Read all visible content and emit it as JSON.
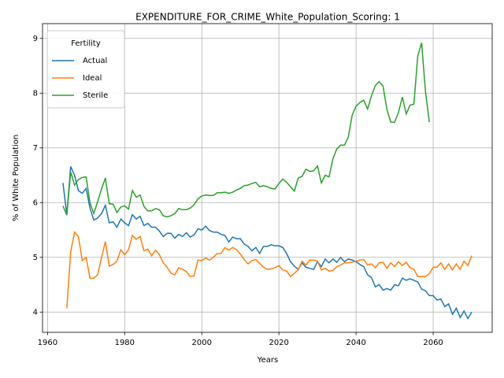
{
  "chart_data": {
    "type": "line",
    "title": "EXPENDITURE_FOR_CRIME_White_Population_Scoring: 1",
    "xlabel": "Years",
    "ylabel": "% of White Population",
    "legend_title": "Fertility",
    "legend_loc": "upper left",
    "grid": true,
    "xlim": [
      1958.7,
      2075.3
    ],
    "ylim": [
      3.63,
      9.27
    ],
    "xticks": [
      1960,
      1980,
      2000,
      2020,
      2040,
      2060
    ],
    "yticks": [
      4,
      5,
      6,
      7,
      8,
      9
    ],
    "x": [
      1964,
      1965,
      1966,
      1967,
      1968,
      1969,
      1970,
      1971,
      1972,
      1973,
      1974,
      1975,
      1976,
      1977,
      1978,
      1979,
      1980,
      1981,
      1982,
      1983,
      1984,
      1985,
      1986,
      1987,
      1988,
      1989,
      1990,
      1991,
      1992,
      1993,
      1994,
      1995,
      1996,
      1997,
      1998,
      1999,
      2000,
      2001,
      2002,
      2003,
      2004,
      2005,
      2006,
      2007,
      2008,
      2009,
      2010,
      2011,
      2012,
      2013,
      2014,
      2015,
      2016,
      2017,
      2018,
      2019,
      2020,
      2021,
      2022,
      2023,
      2024,
      2025,
      2026,
      2027,
      2028,
      2029,
      2030,
      2031,
      2032,
      2033,
      2034,
      2035,
      2036,
      2037,
      2038,
      2039,
      2040,
      2041,
      2042,
      2043,
      2044,
      2045,
      2046,
      2047,
      2048,
      2049,
      2050,
      2051,
      2052,
      2053,
      2054,
      2055,
      2056,
      2057,
      2058,
      2059,
      2060,
      2061,
      2062,
      2063,
      2064,
      2065,
      2066,
      2067,
      2068,
      2069,
      2070
    ],
    "series": [
      {
        "name": "Actual",
        "color": "#1f77b4",
        "values": [
          6.36,
          5.78,
          6.66,
          6.5,
          6.22,
          6.17,
          6.26,
          5.9,
          5.68,
          5.72,
          5.8,
          5.95,
          5.63,
          5.65,
          5.55,
          5.7,
          5.63,
          5.58,
          5.78,
          5.7,
          5.75,
          5.58,
          5.62,
          5.55,
          5.55,
          5.48,
          5.38,
          5.44,
          5.44,
          5.35,
          5.42,
          5.38,
          5.45,
          5.37,
          5.41,
          5.52,
          5.5,
          5.57,
          5.49,
          5.46,
          5.46,
          5.42,
          5.4,
          5.28,
          5.37,
          5.34,
          5.34,
          5.24,
          5.2,
          5.12,
          5.18,
          5.07,
          5.2,
          5.2,
          5.23,
          5.21,
          5.21,
          5.18,
          5.07,
          4.92,
          4.84,
          4.78,
          4.9,
          4.82,
          4.8,
          4.78,
          4.92,
          4.83,
          4.97,
          4.9,
          4.97,
          4.91,
          5.0,
          4.92,
          4.97,
          4.95,
          4.92,
          4.87,
          4.83,
          4.68,
          4.63,
          4.46,
          4.5,
          4.4,
          4.43,
          4.4,
          4.5,
          4.48,
          4.62,
          4.58,
          4.61,
          4.58,
          4.55,
          4.42,
          4.39,
          4.3,
          4.3,
          4.22,
          4.24,
          4.1,
          4.15,
          3.96,
          4.07,
          3.9,
          4.02,
          3.88,
          4.0
        ]
      },
      {
        "name": "Ideal",
        "color": "#ff7f0e",
        "values": [
          null,
          4.07,
          5.1,
          5.46,
          5.38,
          4.94,
          5.0,
          4.62,
          4.62,
          4.68,
          5.0,
          5.29,
          4.84,
          4.87,
          4.93,
          5.14,
          5.05,
          5.14,
          5.4,
          5.33,
          5.38,
          5.12,
          5.15,
          5.03,
          5.13,
          5.05,
          4.9,
          4.82,
          4.71,
          4.68,
          4.81,
          4.78,
          4.74,
          4.65,
          4.66,
          4.95,
          4.94,
          4.99,
          4.95,
          5.0,
          5.07,
          5.07,
          5.18,
          5.13,
          5.18,
          5.14,
          5.06,
          4.96,
          4.88,
          4.94,
          4.96,
          4.89,
          4.82,
          4.78,
          4.79,
          4.81,
          4.85,
          4.77,
          4.75,
          4.65,
          4.71,
          4.77,
          4.93,
          4.86,
          4.95,
          4.95,
          4.93,
          4.77,
          4.8,
          4.75,
          4.76,
          4.83,
          4.86,
          4.9,
          4.9,
          4.91,
          4.93,
          4.95,
          4.96,
          4.86,
          4.88,
          4.81,
          4.9,
          4.91,
          4.8,
          4.9,
          4.83,
          4.92,
          4.85,
          4.91,
          4.81,
          4.78,
          4.65,
          4.65,
          4.65,
          4.7,
          4.82,
          4.82,
          4.9,
          4.78,
          4.88,
          4.77,
          4.88,
          4.78,
          4.93,
          4.85,
          5.03
        ]
      },
      {
        "name": "Sterile",
        "color": "#2ca02c",
        "values": [
          5.94,
          5.77,
          6.56,
          6.32,
          6.42,
          6.46,
          6.47,
          6.0,
          5.8,
          6.02,
          6.25,
          6.45,
          5.98,
          5.97,
          5.82,
          5.92,
          5.94,
          5.88,
          6.22,
          6.1,
          6.14,
          5.93,
          5.85,
          5.85,
          5.89,
          5.87,
          5.76,
          5.74,
          5.76,
          5.8,
          5.89,
          5.87,
          5.87,
          5.9,
          5.96,
          6.07,
          6.12,
          6.14,
          6.13,
          6.13,
          6.18,
          6.18,
          6.19,
          6.17,
          6.19,
          6.23,
          6.26,
          6.31,
          6.32,
          6.35,
          6.37,
          6.29,
          6.31,
          6.29,
          6.26,
          6.25,
          6.35,
          6.43,
          6.37,
          6.29,
          6.21,
          6.45,
          6.48,
          6.61,
          6.57,
          6.58,
          6.67,
          6.36,
          6.5,
          6.47,
          6.8,
          6.98,
          7.05,
          7.05,
          7.2,
          7.6,
          7.76,
          7.83,
          7.87,
          7.71,
          7.95,
          8.14,
          8.21,
          8.13,
          7.7,
          7.47,
          7.47,
          7.65,
          7.93,
          7.62,
          7.78,
          7.8,
          8.68,
          8.92,
          8.03,
          7.47,
          null,
          null,
          null,
          null,
          null,
          null,
          null,
          null,
          null,
          null,
          null
        ]
      }
    ]
  }
}
